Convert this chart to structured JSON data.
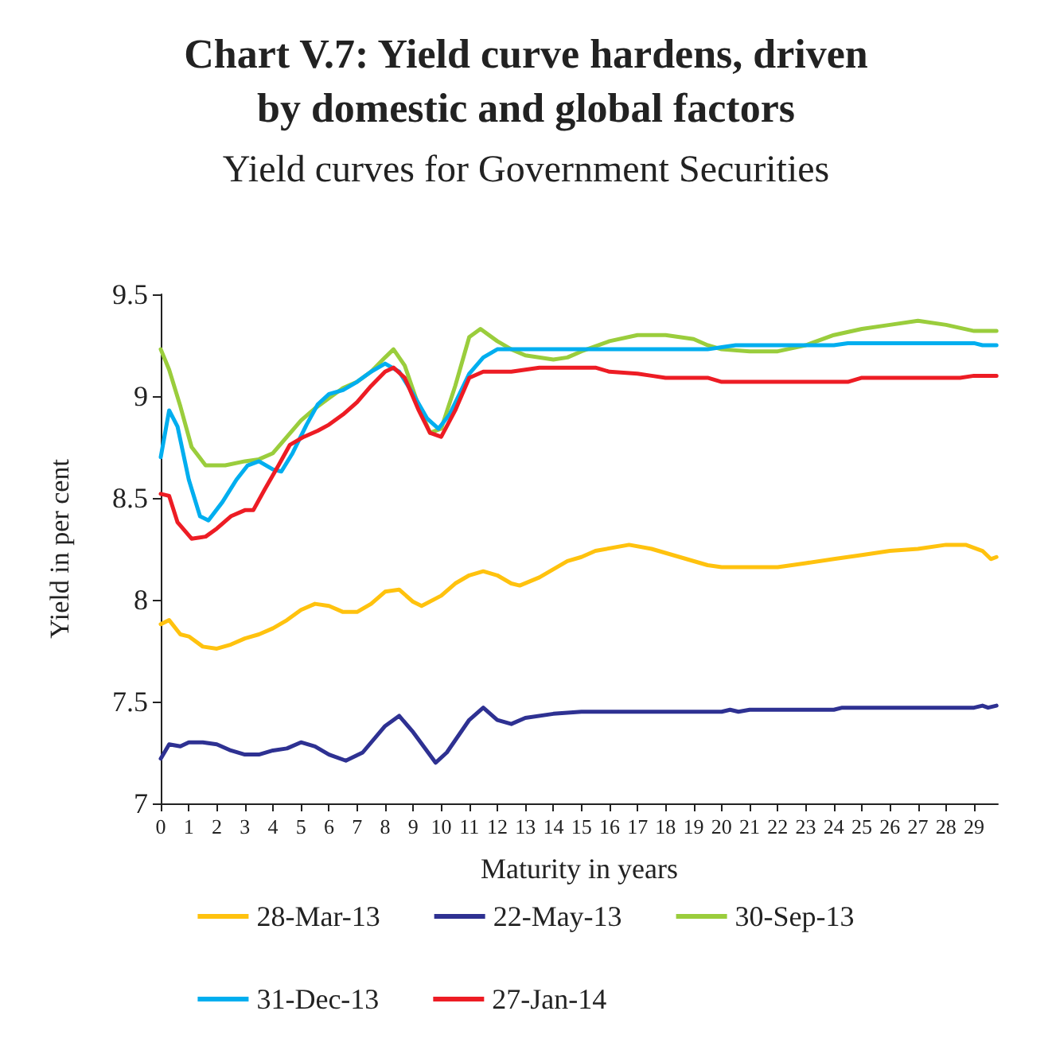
{
  "chart_data": {
    "type": "line",
    "title": "Chart V.7: Yield curve hardens, driven\nby domestic and global factors",
    "subtitle": "Yield curves for Government Securities",
    "xlabel": "Maturity in years",
    "ylabel": "Yield in per cent",
    "xlim": [
      0,
      29.85
    ],
    "xticks": [
      0,
      1,
      2,
      3,
      4,
      5,
      6,
      7,
      8,
      9,
      10,
      11,
      12,
      13,
      14,
      15,
      16,
      17,
      18,
      19,
      20,
      21,
      22,
      23,
      24,
      25,
      26,
      27,
      28,
      29
    ],
    "ylim": [
      7,
      9.5
    ],
    "yticks": [
      7,
      7.5,
      8,
      8.5,
      9,
      9.5
    ],
    "grid": false,
    "legend": "bottom",
    "marker": "none",
    "line_style": "solid",
    "series": [
      {
        "name": "28-Mar-13",
        "color": "#ffc20e",
        "x": [
          0,
          0.3,
          0.7,
          1,
          1.5,
          2,
          2.5,
          3,
          3.5,
          4,
          4.5,
          5,
          5.5,
          6,
          6.5,
          7,
          7.5,
          8,
          8.5,
          9,
          9.3,
          10,
          10.5,
          11,
          11.5,
          12,
          12.5,
          12.8,
          13.5,
          14,
          14.5,
          15,
          15.5,
          16.7,
          17.5,
          18.5,
          19.5,
          20,
          21,
          22,
          23,
          24,
          25,
          26,
          27,
          28,
          28.7,
          29.3,
          29.6,
          29.8
        ],
        "values": [
          7.88,
          7.9,
          7.83,
          7.82,
          7.77,
          7.76,
          7.78,
          7.81,
          7.83,
          7.86,
          7.9,
          7.95,
          7.98,
          7.97,
          7.94,
          7.94,
          7.98,
          8.04,
          8.05,
          7.99,
          7.97,
          8.02,
          8.08,
          8.12,
          8.14,
          8.12,
          8.08,
          8.07,
          8.11,
          8.15,
          8.19,
          8.21,
          8.24,
          8.27,
          8.25,
          8.21,
          8.17,
          8.16,
          8.16,
          8.16,
          8.18,
          8.2,
          8.22,
          8.24,
          8.25,
          8.27,
          8.27,
          8.24,
          8.2,
          8.21
        ]
      },
      {
        "name": "22-May-13",
        "color": "#2e3192",
        "x": [
          0,
          0.3,
          0.7,
          1,
          1.5,
          2,
          2.5,
          3,
          3.5,
          4,
          4.5,
          5,
          5.5,
          6,
          6.6,
          7.2,
          8,
          8.5,
          9,
          9.8,
          10.2,
          11,
          11.5,
          12,
          12.5,
          13,
          14,
          15,
          16,
          18,
          20,
          20.3,
          20.6,
          21,
          22,
          23,
          24,
          24.3,
          25,
          27,
          29,
          29.3,
          29.5,
          29.8
        ],
        "values": [
          7.22,
          7.29,
          7.28,
          7.3,
          7.3,
          7.29,
          7.26,
          7.24,
          7.24,
          7.26,
          7.27,
          7.3,
          7.28,
          7.24,
          7.21,
          7.25,
          7.38,
          7.43,
          7.35,
          7.2,
          7.25,
          7.41,
          7.47,
          7.41,
          7.39,
          7.42,
          7.44,
          7.45,
          7.45,
          7.45,
          7.45,
          7.46,
          7.45,
          7.46,
          7.46,
          7.46,
          7.46,
          7.47,
          7.47,
          7.47,
          7.47,
          7.48,
          7.47,
          7.48
        ]
      },
      {
        "name": "30-Sep-13",
        "color": "#9acd3c",
        "x": [
          0,
          0.3,
          0.7,
          1.1,
          1.6,
          2.3,
          3,
          3.5,
          4,
          4.5,
          5,
          5.5,
          6,
          6.5,
          7,
          7.5,
          8,
          8.3,
          8.7,
          9.2,
          9.6,
          10,
          10.5,
          11,
          11.4,
          12,
          12.5,
          13,
          14,
          14.5,
          15,
          16,
          17,
          18,
          19,
          19.5,
          20,
          21,
          22,
          23,
          24,
          25,
          26,
          27,
          28,
          29,
          29.8
        ],
        "values": [
          9.23,
          9.13,
          8.95,
          8.75,
          8.66,
          8.66,
          8.68,
          8.69,
          8.72,
          8.8,
          8.88,
          8.94,
          8.99,
          9.04,
          9.07,
          9.12,
          9.19,
          9.23,
          9.15,
          8.95,
          8.82,
          8.84,
          9.05,
          9.29,
          9.33,
          9.27,
          9.23,
          9.2,
          9.18,
          9.19,
          9.22,
          9.27,
          9.3,
          9.3,
          9.28,
          9.25,
          9.23,
          9.22,
          9.22,
          9.25,
          9.3,
          9.33,
          9.35,
          9.37,
          9.35,
          9.32,
          9.32
        ]
      },
      {
        "name": "31-Dec-13",
        "color": "#00aeef",
        "x": [
          0,
          0.3,
          0.6,
          1,
          1.4,
          1.7,
          2.2,
          2.7,
          3.1,
          3.5,
          4,
          4.3,
          4.7,
          5.2,
          5.6,
          6,
          6.5,
          7,
          7.5,
          8,
          8.5,
          9,
          9.5,
          9.9,
          10.3,
          11,
          11.5,
          12,
          13,
          15,
          17,
          19.5,
          20,
          20.5,
          23,
          24,
          24.5,
          26,
          29,
          29.3,
          29.8
        ],
        "values": [
          8.7,
          8.93,
          8.85,
          8.59,
          8.41,
          8.39,
          8.48,
          8.59,
          8.66,
          8.68,
          8.64,
          8.63,
          8.72,
          8.86,
          8.96,
          9.01,
          9.03,
          9.07,
          9.12,
          9.16,
          9.12,
          9.01,
          8.89,
          8.84,
          8.91,
          9.11,
          9.19,
          9.23,
          9.23,
          9.23,
          9.23,
          9.23,
          9.24,
          9.25,
          9.25,
          9.25,
          9.26,
          9.26,
          9.26,
          9.25,
          9.25
        ]
      },
      {
        "name": "27-Jan-14",
        "color": "#ed1c24",
        "x": [
          0,
          0.3,
          0.6,
          1.1,
          1.6,
          2,
          2.5,
          3,
          3.3,
          3.7,
          4.2,
          4.6,
          5.1,
          5.6,
          6,
          6.5,
          7,
          7.5,
          8,
          8.3,
          8.7,
          9.2,
          9.6,
          10,
          10.5,
          11,
          11.5,
          12,
          12.5,
          13,
          13.5,
          15.5,
          16,
          17,
          17.5,
          18,
          19.5,
          20,
          24.5,
          25,
          28.5,
          29,
          29.8
        ],
        "values": [
          8.52,
          8.51,
          8.38,
          8.3,
          8.31,
          8.35,
          8.41,
          8.44,
          8.44,
          8.54,
          8.66,
          8.76,
          8.8,
          8.83,
          8.86,
          8.91,
          8.97,
          9.05,
          9.12,
          9.14,
          9.09,
          8.93,
          8.82,
          8.8,
          8.93,
          9.09,
          9.12,
          9.12,
          9.12,
          9.13,
          9.14,
          9.14,
          9.12,
          9.11,
          9.1,
          9.09,
          9.09,
          9.07,
          9.07,
          9.09,
          9.09,
          9.1,
          9.1
        ]
      }
    ]
  }
}
